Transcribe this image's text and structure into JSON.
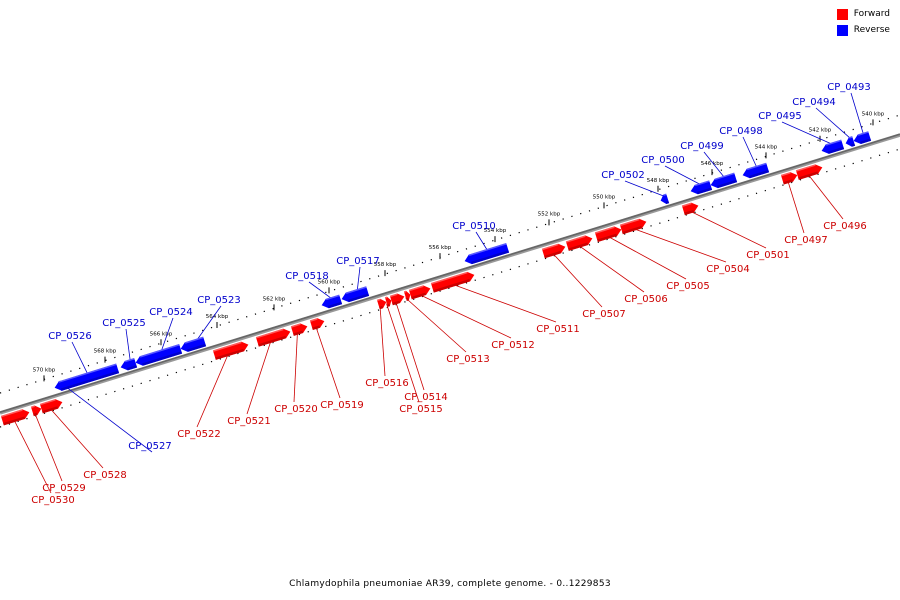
{
  "legend": [
    {
      "label": "Forward",
      "color": "#ff0000"
    },
    {
      "label": "Reverse",
      "color": "#0000ff"
    }
  ],
  "caption": "Chlamydophila pneumoniae AR39, complete genome. - 0..1229853",
  "colors": {
    "forward": "#ff0000",
    "forward_label": "#cc0000",
    "reverse": "#0000ff",
    "reverse_label": "#0000cc",
    "backbone": "#666666"
  },
  "ticks": [
    "570 kbp",
    "568 kbp",
    "566 kbp",
    "564 kbp",
    "562 kbp",
    "560 kbp",
    "558 kbp",
    "556 kbp",
    "554 kbp",
    "552 kbp",
    "550 kbp",
    "548 kbp",
    "546 kbp",
    "544 kbp",
    "542 kbp",
    "540 kbp"
  ],
  "genes": [
    {
      "name": "CP_0493",
      "strand": "reverse"
    },
    {
      "name": "CP_0494",
      "strand": "reverse"
    },
    {
      "name": "CP_0495",
      "strand": "reverse"
    },
    {
      "name": "CP_0496",
      "strand": "forward"
    },
    {
      "name": "CP_0497",
      "strand": "forward"
    },
    {
      "name": "CP_0498",
      "strand": "reverse"
    },
    {
      "name": "CP_0499",
      "strand": "reverse"
    },
    {
      "name": "CP_0500",
      "strand": "reverse"
    },
    {
      "name": "CP_0501",
      "strand": "forward"
    },
    {
      "name": "CP_0502",
      "strand": "reverse"
    },
    {
      "name": "CP_0504",
      "strand": "forward"
    },
    {
      "name": "CP_0505",
      "strand": "forward"
    },
    {
      "name": "CP_0506",
      "strand": "forward"
    },
    {
      "name": "CP_0507",
      "strand": "forward"
    },
    {
      "name": "CP_0510",
      "strand": "reverse"
    },
    {
      "name": "CP_0511",
      "strand": "forward"
    },
    {
      "name": "CP_0512",
      "strand": "forward"
    },
    {
      "name": "CP_0513",
      "strand": "forward"
    },
    {
      "name": "CP_0514",
      "strand": "forward"
    },
    {
      "name": "CP_0515",
      "strand": "forward"
    },
    {
      "name": "CP_0516",
      "strand": "forward"
    },
    {
      "name": "CP_0517",
      "strand": "reverse"
    },
    {
      "name": "CP_0518",
      "strand": "reverse"
    },
    {
      "name": "CP_0519",
      "strand": "forward"
    },
    {
      "name": "CP_0520",
      "strand": "forward"
    },
    {
      "name": "CP_0521",
      "strand": "forward"
    },
    {
      "name": "CP_0522",
      "strand": "forward"
    },
    {
      "name": "CP_0523",
      "strand": "reverse"
    },
    {
      "name": "CP_0524",
      "strand": "reverse"
    },
    {
      "name": "CP_0525",
      "strand": "reverse"
    },
    {
      "name": "CP_0526",
      "strand": "reverse"
    },
    {
      "name": "CP_0527",
      "strand": "reverse"
    },
    {
      "name": "CP_0528",
      "strand": "forward"
    },
    {
      "name": "CP_0529",
      "strand": "forward"
    },
    {
      "name": "CP_0530",
      "strand": "forward"
    }
  ]
}
